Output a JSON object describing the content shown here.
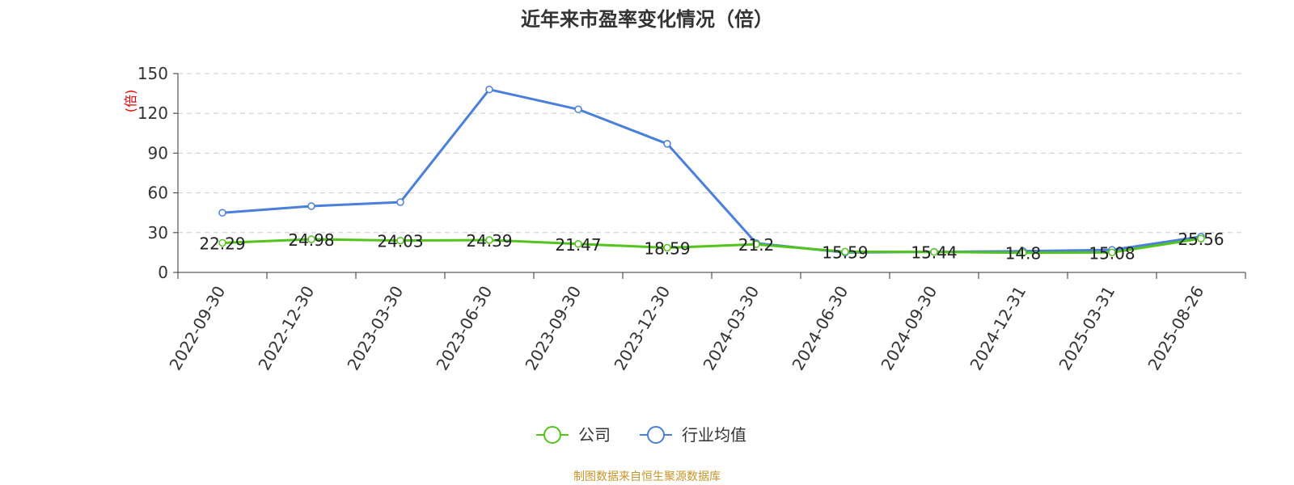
{
  "chart_data": {
    "type": "line",
    "title": "近年来市盈率变化情况（倍）",
    "ylabel": "(倍)",
    "ylim": [
      0,
      150
    ],
    "yticks": [
      0,
      30,
      60,
      90,
      120,
      150
    ],
    "grid": true,
    "legend_position": "bottom",
    "x": [
      "2022-09-30",
      "2022-12-30",
      "2023-03-30",
      "2023-06-30",
      "2023-09-30",
      "2023-12-30",
      "2024-03-30",
      "2024-06-30",
      "2024-09-30",
      "2024-12-31",
      "2025-03-31",
      "2025-08-26"
    ],
    "series": [
      {
        "name": "公司",
        "color": "#52c41a",
        "values": [
          22.29,
          24.98,
          24.03,
          24.39,
          21.47,
          18.59,
          21.2,
          15.59,
          15.44,
          14.8,
          15.08,
          25.56
        ],
        "labels": [
          "22.29",
          "24.98",
          "24.03",
          "24.39",
          "21.47",
          "18.59",
          "21.2",
          "15.59",
          "15.44",
          "14.8",
          "15.08",
          "25.56"
        ]
      },
      {
        "name": "行业均值",
        "color": "#4a7fdc",
        "values": [
          45,
          50,
          53,
          138,
          123,
          97,
          22,
          15,
          15.5,
          16,
          17,
          27
        ]
      }
    ]
  },
  "source": "制图数据来自恒生聚源数据库"
}
